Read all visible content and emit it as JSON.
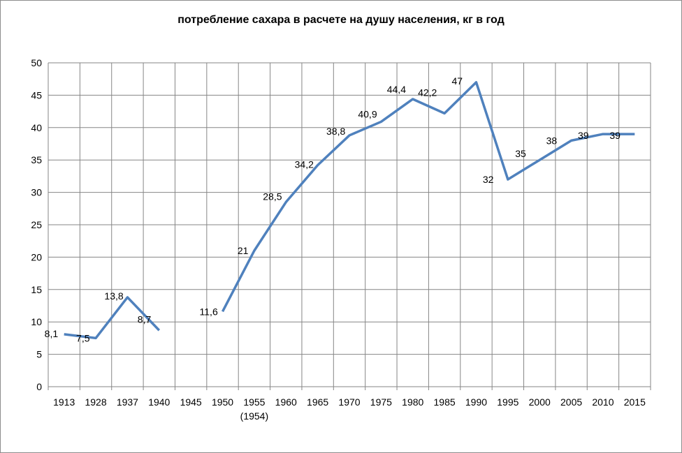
{
  "chart_data": {
    "type": "line",
    "title": "потребление сахара в расчете на душу населения, кг в год",
    "xlabel": "",
    "ylabel": "",
    "ylim": [
      0,
      50
    ],
    "yticks": [
      "0",
      "5",
      "10",
      "15",
      "20",
      "25",
      "30",
      "35",
      "40",
      "45",
      "50"
    ],
    "categories": [
      "1913",
      "1928",
      "1937",
      "1940",
      "1945",
      "1950",
      "1955\n(1954)",
      "1960",
      "1965",
      "1970",
      "1975",
      "1980",
      "1985",
      "1990",
      "1995",
      "2000",
      "2005",
      "2010",
      "2015"
    ],
    "grid": true,
    "legend": "none",
    "series_color": "#4f81bd",
    "series": [
      {
        "points": [
          {
            "x": "1913",
            "y": 8.1,
            "label": "8,1"
          },
          {
            "x": "1928",
            "y": 7.5,
            "label": "7,5"
          },
          {
            "x": "1937",
            "y": 13.8,
            "label": "13,8"
          },
          {
            "x": "1940",
            "y": 8.7,
            "label": "8,7"
          },
          {
            "x": "1945",
            "y": null,
            "label": null
          },
          {
            "x": "1950",
            "y": 11.6,
            "label": "11,6"
          },
          {
            "x": "1955",
            "y": 21,
            "label": "21"
          },
          {
            "x": "1960",
            "y": 28.5,
            "label": "28,5"
          },
          {
            "x": "1965",
            "y": 34.2,
            "label": "34,2"
          },
          {
            "x": "1970",
            "y": 38.8,
            "label": "38,8"
          },
          {
            "x": "1975",
            "y": 40.9,
            "label": "40,9"
          },
          {
            "x": "1980",
            "y": 44.4,
            "label": "44,4"
          },
          {
            "x": "1985",
            "y": 42.2,
            "label": "42,2"
          },
          {
            "x": "1990",
            "y": 47,
            "label": "47"
          },
          {
            "x": "1995",
            "y": 32,
            "label": "32"
          },
          {
            "x": "2000",
            "y": 35,
            "label": "35"
          },
          {
            "x": "2005",
            "y": 38,
            "label": "38"
          },
          {
            "x": "2010",
            "y": 39,
            "label": "39"
          },
          {
            "x": "2015",
            "y": 39,
            "label": "39"
          }
        ]
      }
    ]
  }
}
